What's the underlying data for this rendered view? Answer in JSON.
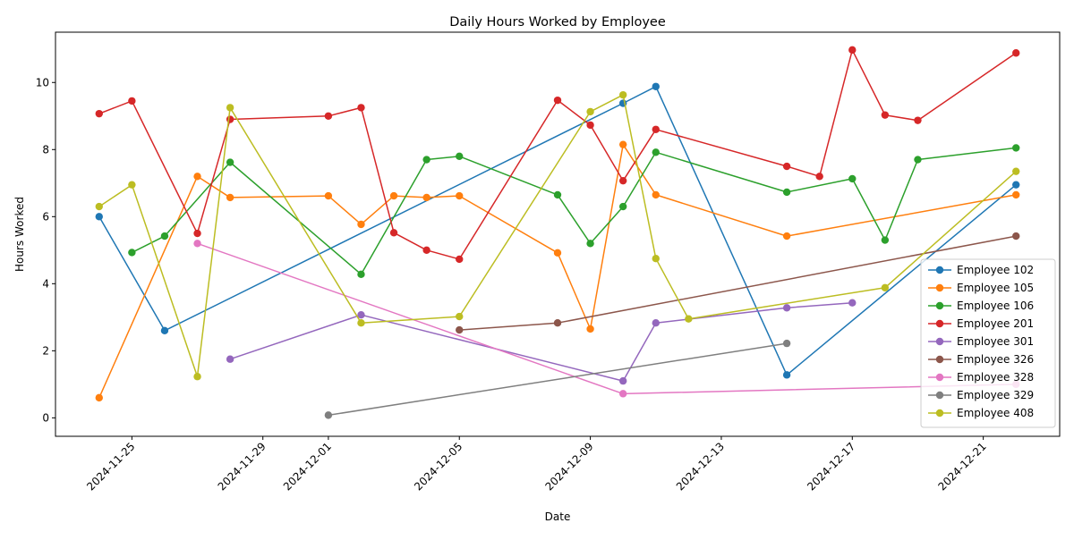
{
  "chart_data": {
    "type": "line",
    "title": "Daily Hours Worked by Employee",
    "xlabel": "Date",
    "ylabel": "Hours Worked",
    "xlim": [
      "2024-11-22T16:00",
      "2024-12-23T08:00"
    ],
    "ylim": [
      -0.55,
      11.5
    ],
    "x_ticks": [
      "2024-11-25",
      "2024-11-29",
      "2024-12-01",
      "2024-12-05",
      "2024-12-09",
      "2024-12-13",
      "2024-12-17",
      "2024-12-21"
    ],
    "y_ticks": [
      0,
      2,
      4,
      6,
      8,
      10
    ],
    "grid": false,
    "legend_position": "lower-right",
    "series": [
      {
        "name": "Employee 102",
        "color": "#1f77b4",
        "points": [
          [
            "2024-11-24",
            6.0
          ],
          [
            "2024-11-26",
            2.6
          ],
          [
            "2024-12-10",
            9.38
          ],
          [
            "2024-12-11",
            9.88
          ],
          [
            "2024-12-15",
            1.28
          ],
          [
            "2024-12-22",
            6.95
          ]
        ]
      },
      {
        "name": "Employee 105",
        "color": "#ff7f0e",
        "points": [
          [
            "2024-11-24",
            0.6
          ],
          [
            "2024-11-27",
            7.2
          ],
          [
            "2024-11-28",
            6.57
          ],
          [
            "2024-12-01",
            6.62
          ],
          [
            "2024-12-02",
            5.77
          ],
          [
            "2024-12-03",
            6.62
          ],
          [
            "2024-12-04",
            6.57
          ],
          [
            "2024-12-05",
            6.62
          ],
          [
            "2024-12-08",
            4.92
          ],
          [
            "2024-12-09",
            2.65
          ],
          [
            "2024-12-10",
            8.15
          ],
          [
            "2024-12-11",
            6.65
          ],
          [
            "2024-12-15",
            5.42
          ],
          [
            "2024-12-22",
            6.65
          ]
        ]
      },
      {
        "name": "Employee 106",
        "color": "#2ca02c",
        "points": [
          [
            "2024-11-25",
            4.93
          ],
          [
            "2024-11-26",
            5.42
          ],
          [
            "2024-11-28",
            7.62
          ],
          [
            "2024-12-02",
            4.28
          ],
          [
            "2024-12-04",
            7.7
          ],
          [
            "2024-12-05",
            7.8
          ],
          [
            "2024-12-08",
            6.65
          ],
          [
            "2024-12-09",
            5.2
          ],
          [
            "2024-12-10",
            6.3
          ],
          [
            "2024-12-11",
            7.92
          ],
          [
            "2024-12-15",
            6.73
          ],
          [
            "2024-12-17",
            7.13
          ],
          [
            "2024-12-18",
            5.3
          ],
          [
            "2024-12-19",
            7.7
          ],
          [
            "2024-12-22",
            8.05
          ]
        ]
      },
      {
        "name": "Employee 201",
        "color": "#d62728",
        "points": [
          [
            "2024-11-24",
            9.07
          ],
          [
            "2024-11-25",
            9.45
          ],
          [
            "2024-11-27",
            5.5
          ],
          [
            "2024-11-28",
            8.9
          ],
          [
            "2024-12-01",
            9.0
          ],
          [
            "2024-12-02",
            9.25
          ],
          [
            "2024-12-03",
            5.52
          ],
          [
            "2024-12-04",
            5.0
          ],
          [
            "2024-12-05",
            4.73
          ],
          [
            "2024-12-08",
            9.47
          ],
          [
            "2024-12-09",
            8.73
          ],
          [
            "2024-12-10",
            7.07
          ],
          [
            "2024-12-11",
            8.6
          ],
          [
            "2024-12-15",
            7.5
          ],
          [
            "2024-12-16",
            7.2
          ],
          [
            "2024-12-17",
            10.97
          ],
          [
            "2024-12-18",
            9.03
          ],
          [
            "2024-12-19",
            8.87
          ],
          [
            "2024-12-22",
            10.88
          ]
        ]
      },
      {
        "name": "Employee 301",
        "color": "#9467bd",
        "points": [
          [
            "2024-11-28",
            1.75
          ],
          [
            "2024-12-02",
            3.07
          ],
          [
            "2024-12-10",
            1.1
          ],
          [
            "2024-12-11",
            2.83
          ],
          [
            "2024-12-15",
            3.28
          ],
          [
            "2024-12-17",
            3.43
          ]
        ]
      },
      {
        "name": "Employee 326",
        "color": "#8c564b",
        "points": [
          [
            "2024-12-05",
            2.62
          ],
          [
            "2024-12-08",
            2.83
          ],
          [
            "2024-12-22",
            5.42
          ]
        ]
      },
      {
        "name": "Employee 328",
        "color": "#e377c2",
        "points": [
          [
            "2024-11-27",
            5.2
          ],
          [
            "2024-12-10",
            0.72
          ],
          [
            "2024-12-22",
            1.0
          ]
        ]
      },
      {
        "name": "Employee 329",
        "color": "#7f7f7f",
        "points": [
          [
            "2024-12-01",
            0.08
          ],
          [
            "2024-12-15",
            2.22
          ]
        ]
      },
      {
        "name": "Employee 408",
        "color": "#bcbd22",
        "points": [
          [
            "2024-11-24",
            6.3
          ],
          [
            "2024-11-25",
            6.95
          ],
          [
            "2024-11-27",
            1.23
          ],
          [
            "2024-11-28",
            9.25
          ],
          [
            "2024-12-02",
            2.83
          ],
          [
            "2024-12-05",
            3.02
          ],
          [
            "2024-12-09",
            9.13
          ],
          [
            "2024-12-10",
            9.63
          ],
          [
            "2024-12-11",
            4.75
          ],
          [
            "2024-12-12",
            2.95
          ],
          [
            "2024-12-18",
            3.88
          ],
          [
            "2024-12-22",
            7.35
          ]
        ]
      }
    ]
  }
}
